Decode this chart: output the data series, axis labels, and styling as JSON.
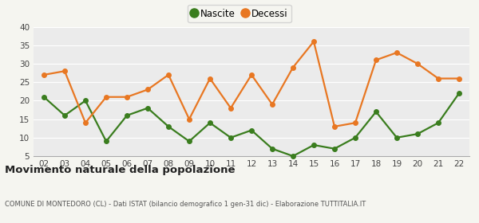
{
  "years": [
    "02",
    "03",
    "04",
    "05",
    "06",
    "07",
    "08",
    "09",
    "10",
    "11",
    "12",
    "13",
    "14",
    "15",
    "16",
    "17",
    "18",
    "19",
    "20",
    "21",
    "22"
  ],
  "nascite": [
    21,
    16,
    20,
    9,
    16,
    18,
    13,
    9,
    14,
    10,
    12,
    7,
    5,
    8,
    7,
    10,
    17,
    10,
    11,
    14,
    22
  ],
  "decessi": [
    27,
    28,
    14,
    21,
    21,
    23,
    27,
    15,
    26,
    18,
    27,
    19,
    29,
    36,
    13,
    14,
    31,
    33,
    30,
    26,
    26
  ],
  "nascite_color": "#3a7d1e",
  "decessi_color": "#e87722",
  "plot_bg_color": "#ebebeb",
  "fig_bg_color": "#f5f5f0",
  "grid_color": "#ffffff",
  "ylim": [
    5,
    40
  ],
  "yticks": [
    5,
    10,
    15,
    20,
    25,
    30,
    35,
    40
  ],
  "title": "Movimento naturale della popolazione",
  "subtitle": "COMUNE DI MONTEDORO (CL) - Dati ISTAT (bilancio demografico 1 gen-31 dic) - Elaborazione TUTTITALIA.IT",
  "legend_nascite": "Nascite",
  "legend_decessi": "Decessi",
  "marker_size": 4,
  "line_width": 1.6
}
